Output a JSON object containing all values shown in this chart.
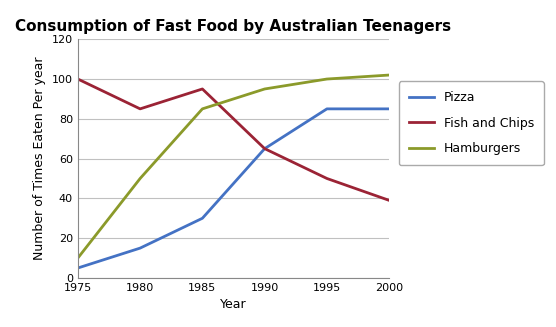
{
  "title": "Consumption of Fast Food by Australian Teenagers",
  "xlabel": "Year",
  "ylabel": "Number of Times Eaten Per year",
  "years": [
    1975,
    1980,
    1985,
    1990,
    1995,
    2000
  ],
  "pizza": [
    5,
    15,
    30,
    65,
    85,
    85
  ],
  "fish_and_chips": [
    100,
    85,
    95,
    65,
    50,
    39
  ],
  "hamburgers": [
    10,
    50,
    85,
    95,
    100,
    102
  ],
  "pizza_color": "#4472C4",
  "fish_color": "#9B2335",
  "hamburger_color": "#8B9A2A",
  "ylim": [
    0,
    120
  ],
  "xlim": [
    1975,
    2000
  ],
  "xticks": [
    1975,
    1980,
    1985,
    1990,
    1995,
    2000
  ],
  "yticks": [
    0,
    20,
    40,
    60,
    80,
    100,
    120
  ],
  "title_fontsize": 11,
  "label_fontsize": 9,
  "tick_fontsize": 8,
  "legend_fontsize": 9,
  "line_width": 2.0,
  "background_color": "#FFFFFF",
  "grid_color": "#C0C0C0"
}
